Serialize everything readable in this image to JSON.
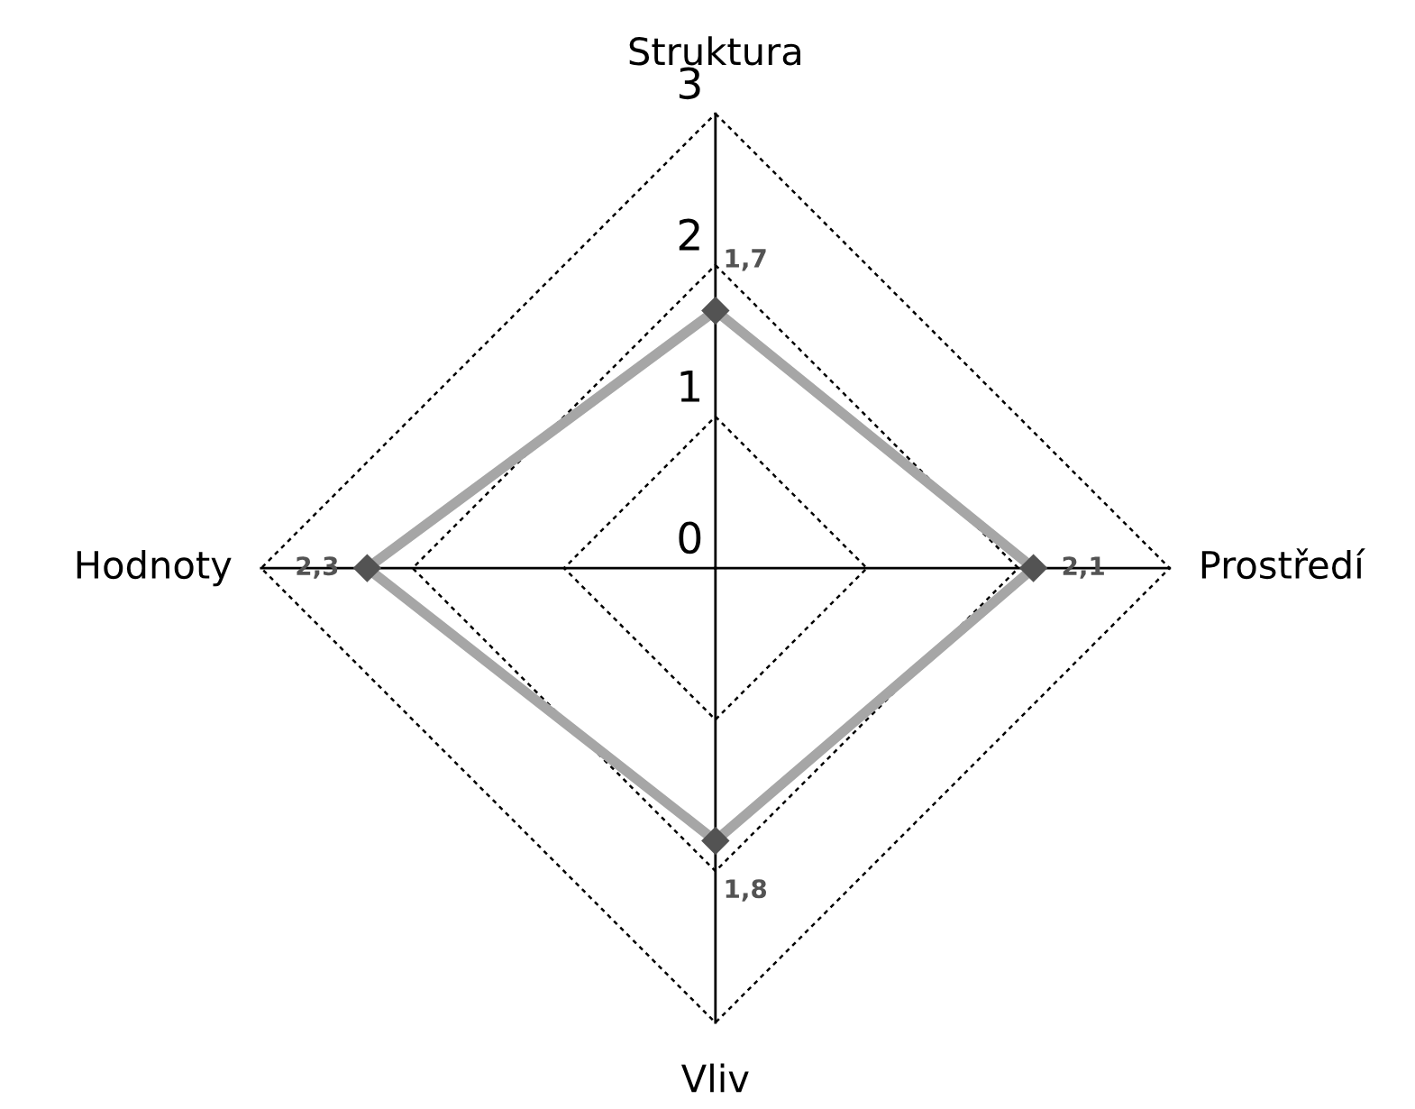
{
  "chart_data": {
    "type": "radar",
    "categories": [
      "Struktura",
      "Prostředí",
      "Vliv",
      "Hodnoty"
    ],
    "series": [
      {
        "color": "#a6a6a6",
        "values": [
          1.7,
          2.1,
          1.8,
          2.3
        ],
        "value_labels": [
          "1,7",
          "2,1",
          "1,8",
          "2,3"
        ]
      }
    ],
    "ylim": [
      0,
      3
    ],
    "yticks": [
      0,
      1,
      2,
      3
    ],
    "grid": true,
    "marker": "diamond",
    "line_style": "solid"
  }
}
